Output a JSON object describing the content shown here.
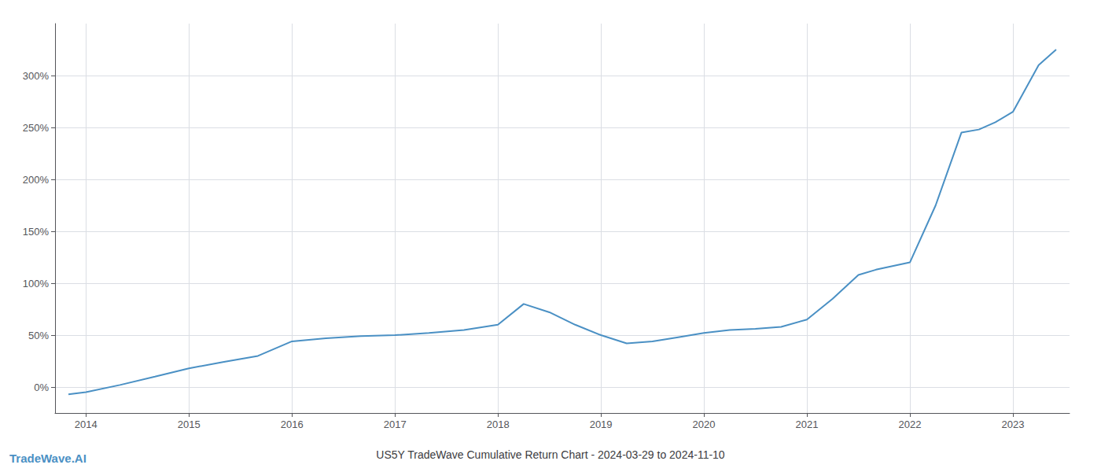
{
  "chart_data": {
    "type": "line",
    "title": "US5Y TradeWave Cumulative Return Chart - 2024-03-29 to 2024-11-10",
    "annotations": [
      {
        "text": "TradeWave.AI",
        "color": "#4a90c4"
      }
    ],
    "x": [
      2013.83,
      2014.0,
      2014.33,
      2014.67,
      2015.0,
      2015.33,
      2015.67,
      2016.0,
      2016.33,
      2016.67,
      2017.0,
      2017.33,
      2017.67,
      2018.0,
      2018.25,
      2018.5,
      2018.75,
      2019.0,
      2019.25,
      2019.5,
      2019.75,
      2020.0,
      2020.25,
      2020.5,
      2020.75,
      2021.0,
      2021.25,
      2021.5,
      2021.67,
      2022.0,
      2022.25,
      2022.5,
      2022.67,
      2022.83,
      2023.0,
      2023.25,
      2023.42
    ],
    "values": [
      -7.0,
      -5.0,
      2.0,
      10.0,
      18.0,
      24.0,
      30.0,
      44.0,
      47.0,
      49.0,
      50.0,
      52.0,
      55.0,
      60.0,
      80.0,
      72.0,
      60.0,
      50.0,
      42.0,
      44.0,
      48.0,
      52.0,
      55.0,
      56.0,
      58.0,
      65.0,
      85.0,
      108.0,
      113.0,
      120.0,
      175.0,
      245.0,
      248.0,
      255.0,
      265.0,
      310.0,
      325.0
    ],
    "color": "#4a90c4",
    "xlim": [
      2013.7,
      2023.55
    ],
    "ylim": [
      -25,
      350
    ],
    "xticks": [
      2014,
      2015,
      2016,
      2017,
      2018,
      2019,
      2020,
      2021,
      2022,
      2023
    ],
    "yticks": [
      {
        "value": 0,
        "label": "0%"
      },
      {
        "value": 50,
        "label": "50%"
      },
      {
        "value": 100,
        "label": "100%"
      },
      {
        "value": 150,
        "label": "150%"
      },
      {
        "value": 200,
        "label": "200%"
      },
      {
        "value": 250,
        "label": "250%"
      },
      {
        "value": 300,
        "label": "300%"
      }
    ],
    "grid": true
  }
}
